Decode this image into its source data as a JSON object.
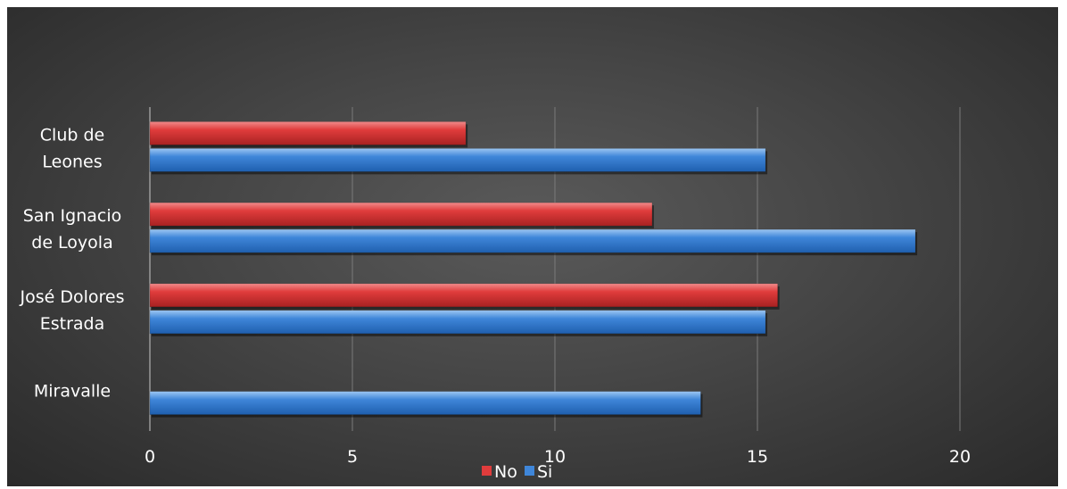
{
  "chart_data": {
    "type": "bar",
    "orientation": "horizontal",
    "title": "",
    "xlabel": "",
    "ylabel": "",
    "categories": [
      [
        "Club de",
        "Leones"
      ],
      [
        "San Ignacio",
        "de Loyola"
      ],
      [
        "José Dolores",
        "Estrada"
      ],
      [
        "Miravalle"
      ]
    ],
    "series": [
      {
        "name": "No",
        "color": "#e03c3c",
        "values": [
          7.8,
          12.4,
          15.5,
          0
        ]
      },
      {
        "name": "Si",
        "color": "#3f86d9",
        "values": [
          15.2,
          18.9,
          15.2,
          13.6
        ]
      }
    ],
    "xlim": [
      0,
      22
    ],
    "xticks": [
      0,
      5,
      10,
      15,
      20
    ],
    "grid": true,
    "legend": "bottom-center"
  }
}
